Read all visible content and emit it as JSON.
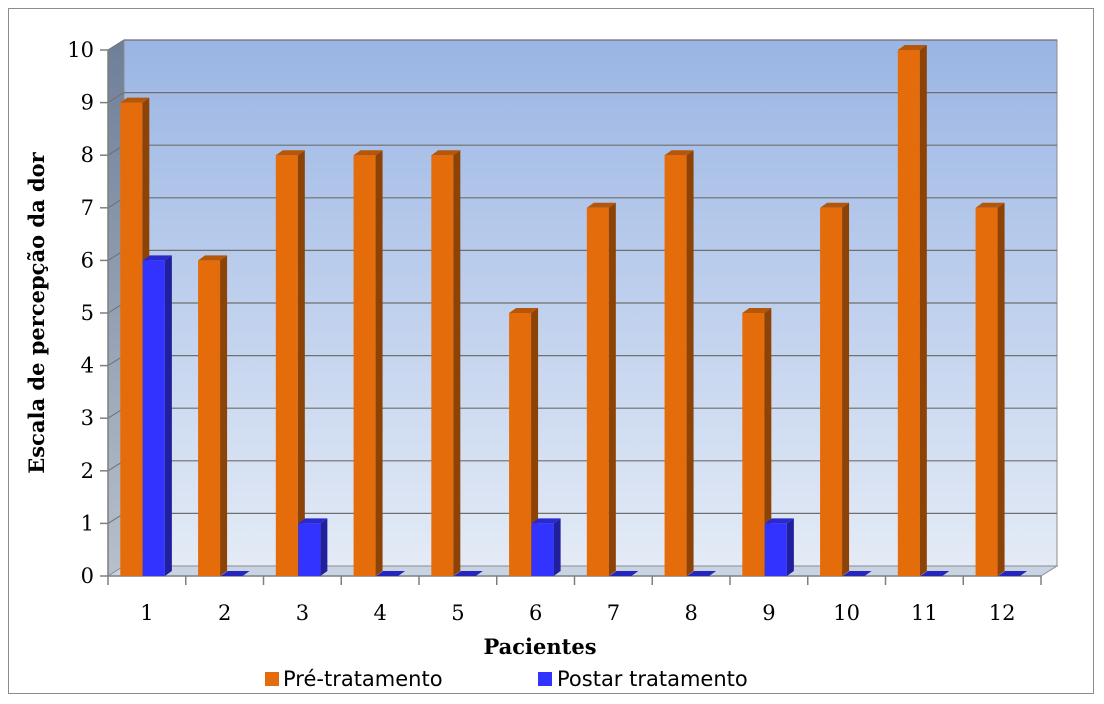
{
  "chart_data": {
    "type": "bar",
    "categories": [
      "1",
      "2",
      "3",
      "4",
      "5",
      "6",
      "7",
      "8",
      "9",
      "10",
      "11",
      "12"
    ],
    "series": [
      {
        "name": "Pré-tratamento",
        "values": [
          9,
          6,
          8,
          8,
          8,
          5,
          7,
          8,
          5,
          7,
          10,
          7
        ],
        "color": "#e46c0a"
      },
      {
        "name": "Postar tratamento",
        "values": [
          6,
          0,
          1,
          0,
          0,
          1,
          0,
          0,
          1,
          0,
          0,
          0
        ],
        "color": "#3333ff"
      }
    ],
    "xlabel": "Pacientes",
    "ylabel": "Escala de percepção da dor",
    "ylim": [
      0,
      10
    ],
    "yticks": [
      "0",
      "1",
      "2",
      "3",
      "4",
      "5",
      "6",
      "7",
      "8",
      "9",
      "10"
    ],
    "grid": true,
    "legend_position": "bottom"
  }
}
